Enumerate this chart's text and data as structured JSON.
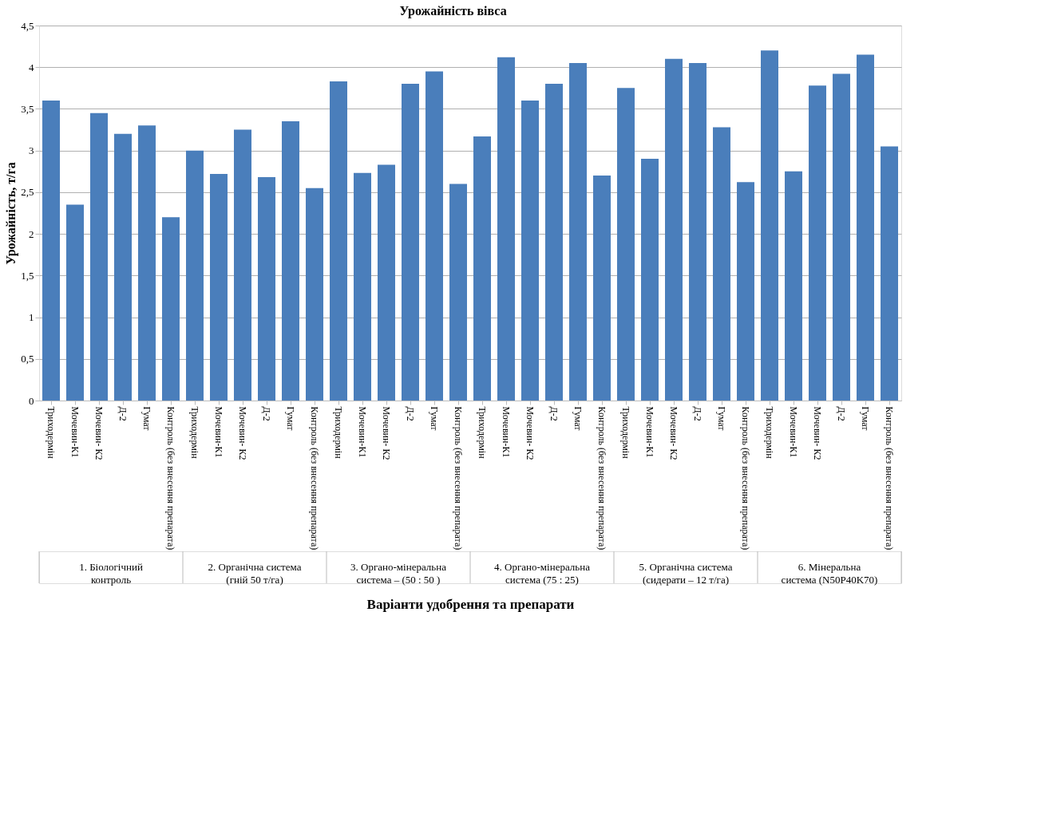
{
  "chart_data": {
    "type": "bar",
    "title": "Урожайність вівса",
    "ylabel": "Урожайність, т/га",
    "xlabel": "Варіанти удобрення  та препарати",
    "categories": [
      "Триходермін",
      "Мочевин-К1",
      "Мочевин- К2",
      "Д-2",
      "Гумат",
      "Контроль (без внесення препарата)",
      "Триходермін",
      "Мочевин-К1",
      "Мочевин- К2",
      "Д-2",
      "Гумат",
      "Контроль (без внесення препарата)",
      "Триходермін",
      "Мочевин-К1",
      "Мочевин- К2",
      "Д-2",
      "Гумат",
      "Контроль (без внесення препарата)",
      "Триходермін",
      "Мочевин-К1",
      "Мочевин- К2",
      "Д-2",
      "Гумат",
      "Контроль (без внесення препарата)",
      "Триходермін",
      "Мочевин-К1",
      "Мочевин- К2",
      "Д-2",
      "Гумат",
      "Контроль (без внесення препарата)",
      "Триходермін",
      "Мочевин-К1",
      "Мочевин- К2",
      "Д-2",
      "Гумат",
      "Контроль (без внесення препарата)"
    ],
    "values": [
      3.6,
      2.35,
      3.45,
      3.2,
      3.3,
      2.2,
      3.0,
      2.72,
      3.25,
      2.68,
      3.35,
      2.55,
      3.83,
      2.73,
      2.83,
      3.8,
      3.95,
      2.6,
      3.17,
      4.12,
      3.6,
      3.8,
      4.05,
      2.7,
      3.75,
      2.9,
      4.1,
      4.05,
      3.28,
      2.62,
      4.2,
      2.75,
      3.78,
      3.92,
      4.15,
      3.05
    ],
    "color": "#4a7ebb",
    "annotations": [
      "1. Біологічний контроль",
      "2. Органічна система (гній 50 т/га)",
      "3. Органо-мінеральна система – (50 : 50 )",
      "4. Органо-мінеральна система (75 : 25)",
      "5. Органічна система (сидерати – 12 т/га)",
      "6. Мінеральна система (N50P40K70)"
    ],
    "ylim": [
      0,
      4.5
    ],
    "yticks": [
      0,
      {
        "value": 0.5,
        "label": "0,5"
      },
      1,
      {
        "value": 1.5,
        "label": "1,5"
      },
      2,
      {
        "value": 2.5,
        "label": "2,5"
      },
      3,
      {
        "value": 3.5,
        "label": "3,5"
      },
      4,
      {
        "value": 4.5,
        "label": "4,5"
      }
    ],
    "grid": "y"
  }
}
